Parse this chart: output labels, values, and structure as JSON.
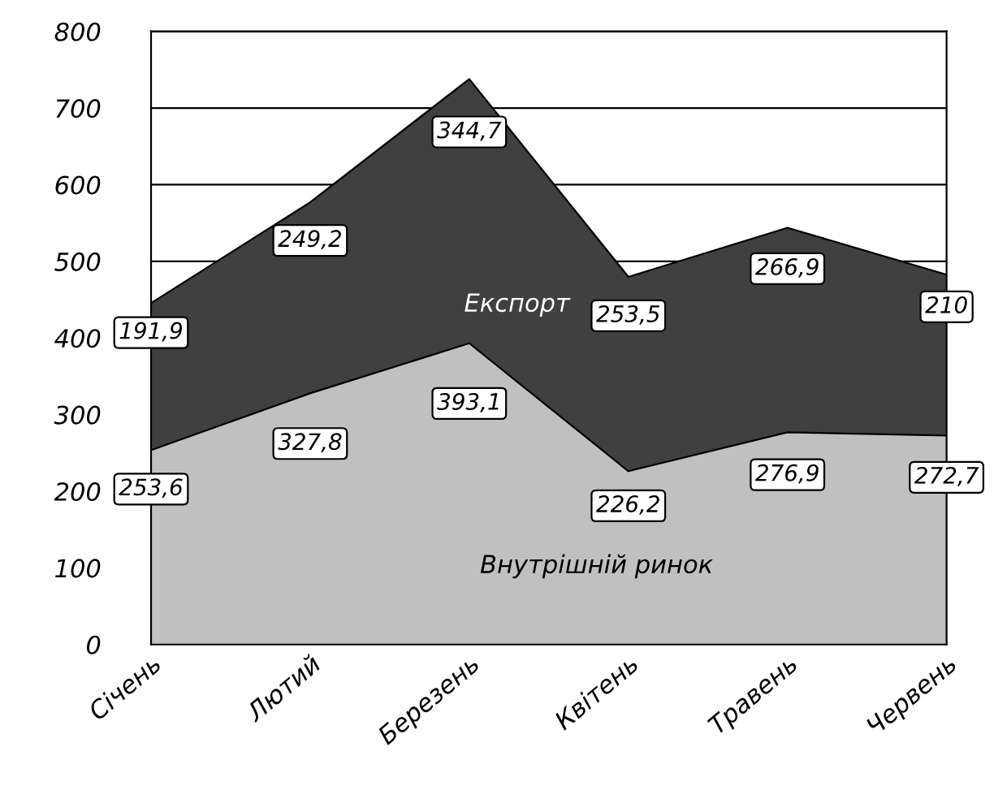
{
  "chart_data": {
    "type": "area",
    "stacked": true,
    "categories": [
      "Січень",
      "Лютий",
      "Березень",
      "Квітень",
      "Травень",
      "Червень"
    ],
    "series": [
      {
        "name": "Внутрішній ринок",
        "color": "#c0c0c0",
        "values": [
          253.6,
          327.8,
          393.1,
          226.2,
          276.9,
          272.7
        ],
        "value_labels": [
          "253,6",
          "327,8",
          "393,1",
          "226,2",
          "276,9",
          "272,7"
        ]
      },
      {
        "name": "Експорт",
        "color": "#404040",
        "values": [
          191.9,
          249.2,
          344.7,
          253.5,
          266.9,
          210
        ],
        "value_labels": [
          "191,9",
          "249,2",
          "344,7",
          "253,5",
          "266,9",
          "210"
        ]
      }
    ],
    "ylim": [
      0,
      800
    ],
    "yticks": [
      0,
      100,
      200,
      300,
      400,
      500,
      600,
      700,
      800
    ],
    "grid": "y"
  }
}
